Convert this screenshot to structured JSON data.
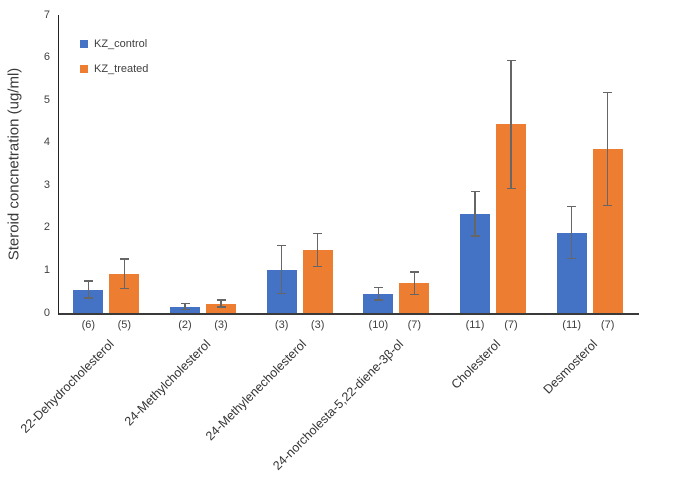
{
  "colors": {
    "control": "#4472C4",
    "treated": "#ED7D31",
    "error_bar": "#666666",
    "axis_line": "#3a3a3a",
    "text": "#404040"
  },
  "chart_data": {
    "type": "bar",
    "title": "",
    "xlabel": "",
    "ylabel": "Steroid concnetration (ug/ml)",
    "ylim": [
      0,
      7
    ],
    "yticks": [
      0,
      1,
      2,
      3,
      4,
      5,
      6,
      7
    ],
    "grid": false,
    "legend_position": "inside-top-left",
    "categories": [
      "22-Dehydrocholesterol",
      "24-Methylcholesterol",
      "24-Methylenecholesterol",
      "24-norcholesta-5,22-diene-3β-ol",
      "Cholesterol",
      "Desmosterol"
    ],
    "series": [
      {
        "name": "KZ_control",
        "color": "#4472C4",
        "values": [
          0.55,
          0.15,
          1.02,
          0.45,
          2.33,
          1.89
        ],
        "errors": [
          0.2,
          0.07,
          0.56,
          0.15,
          0.52,
          0.61
        ],
        "sample_sizes": [
          "(6)",
          "(2)",
          "(3)",
          "(10)",
          "(11)",
          "(11)"
        ]
      },
      {
        "name": "KZ_treated",
        "color": "#ED7D31",
        "values": [
          0.92,
          0.22,
          1.48,
          0.7,
          4.43,
          3.85
        ],
        "errors": [
          0.35,
          0.08,
          0.39,
          0.26,
          1.5,
          1.33
        ],
        "sample_sizes": [
          "(5)",
          "(3)",
          "(3)",
          "(7)",
          "(7)",
          "(7)"
        ]
      }
    ]
  }
}
